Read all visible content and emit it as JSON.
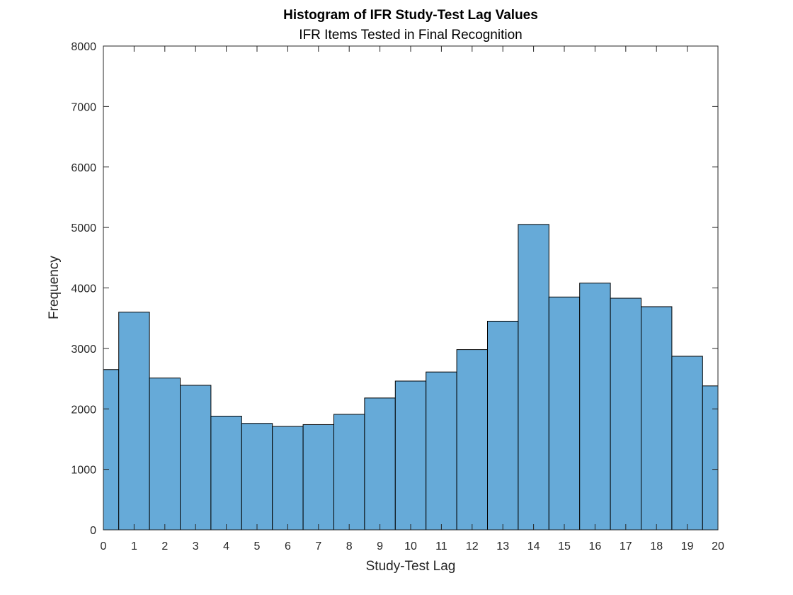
{
  "chart_data": {
    "type": "bar",
    "title": "Histogram of IFR Study-Test Lag Values",
    "subtitle": "IFR Items Tested in Final Recognition",
    "xlabel": "Study-Test Lag",
    "ylabel": "Frequency",
    "xlim": [
      0,
      20
    ],
    "ylim": [
      0,
      8000
    ],
    "x_ticks": [
      "0",
      "1",
      "2",
      "3",
      "4",
      "5",
      "6",
      "7",
      "8",
      "9",
      "10",
      "11",
      "12",
      "13",
      "14",
      "15",
      "16",
      "17",
      "18",
      "19",
      "20"
    ],
    "y_ticks": [
      "0",
      "1000",
      "2000",
      "3000",
      "4000",
      "5000",
      "6000",
      "7000",
      "8000"
    ],
    "bins": [
      {
        "x0": 0,
        "x1": 0.5,
        "value": 2650
      },
      {
        "x0": 0.5,
        "x1": 1.5,
        "value": 3600
      },
      {
        "x0": 1.5,
        "x1": 2.5,
        "value": 2510
      },
      {
        "x0": 2.5,
        "x1": 3.5,
        "value": 2390
      },
      {
        "x0": 3.5,
        "x1": 4.5,
        "value": 1880
      },
      {
        "x0": 4.5,
        "x1": 5.5,
        "value": 1760
      },
      {
        "x0": 5.5,
        "x1": 6.5,
        "value": 1710
      },
      {
        "x0": 6.5,
        "x1": 7.5,
        "value": 1740
      },
      {
        "x0": 7.5,
        "x1": 8.5,
        "value": 1910
      },
      {
        "x0": 8.5,
        "x1": 9.5,
        "value": 2180
      },
      {
        "x0": 9.5,
        "x1": 10.5,
        "value": 2460
      },
      {
        "x0": 10.5,
        "x1": 11.5,
        "value": 2610
      },
      {
        "x0": 11.5,
        "x1": 12.5,
        "value": 2980
      },
      {
        "x0": 12.5,
        "x1": 13.5,
        "value": 3450
      },
      {
        "x0": 13.5,
        "x1": 14.5,
        "value": 5050
      },
      {
        "x0": 14.5,
        "x1": 15.5,
        "value": 3850
      },
      {
        "x0": 15.5,
        "x1": 16.5,
        "value": 4080
      },
      {
        "x0": 16.5,
        "x1": 17.5,
        "value": 3830
      },
      {
        "x0": 17.5,
        "x1": 18.5,
        "value": 3690
      },
      {
        "x0": 18.5,
        "x1": 19.5,
        "value": 2870
      },
      {
        "x0": 19.5,
        "x1": 20,
        "value": 2380
      }
    ],
    "bar_color": "#66aad8",
    "bar_edge_color": "#000000",
    "axis_color": "#262626",
    "grid": false,
    "legend": false
  }
}
